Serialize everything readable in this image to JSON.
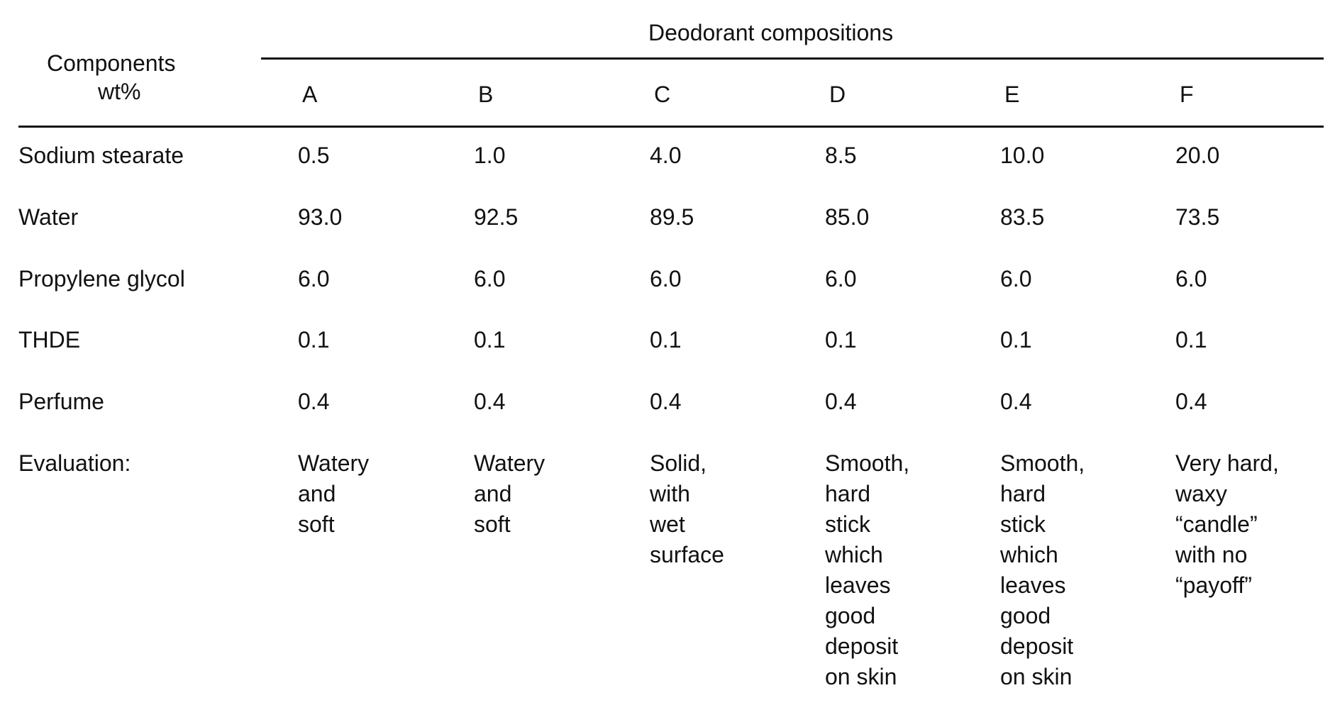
{
  "table": {
    "stub_header": [
      "Components",
      "wt%"
    ],
    "group_header": "Deodorant compositions",
    "columns": [
      "A",
      "B",
      "C",
      "D",
      "E",
      "F"
    ],
    "rows": [
      {
        "label": "Sodium stearate",
        "values": [
          "0.5",
          "1.0",
          "4.0",
          "8.5",
          "10.0",
          "20.0"
        ]
      },
      {
        "label": "Water",
        "values": [
          "93.0",
          "92.5",
          "89.5",
          "85.0",
          "83.5",
          "73.5"
        ]
      },
      {
        "label": "Propylene glycol",
        "values": [
          "6.0",
          "6.0",
          "6.0",
          "6.0",
          "6.0",
          "6.0"
        ]
      },
      {
        "label": "THDE",
        "values": [
          "0.1",
          "0.1",
          "0.1",
          "0.1",
          "0.1",
          "0.1"
        ]
      },
      {
        "label": "Perfume",
        "values": [
          "0.4",
          "0.4",
          "0.4",
          "0.4",
          "0.4",
          "0.4"
        ]
      }
    ],
    "evaluation": {
      "label": "Evaluation:",
      "values": [
        "Watery\nand\nsoft",
        "Watery\nand\nsoft",
        "Solid,\nwith\nwet\nsurface",
        "Smooth,\nhard\nstick\nwhich\nleaves\ngood\ndeposit\non skin",
        "Smooth,\nhard\nstick\nwhich\nleaves\ngood\ndeposit\non skin",
        "Very hard,\nwaxy\n“candle”\nwith no\n“payoff”"
      ]
    }
  }
}
